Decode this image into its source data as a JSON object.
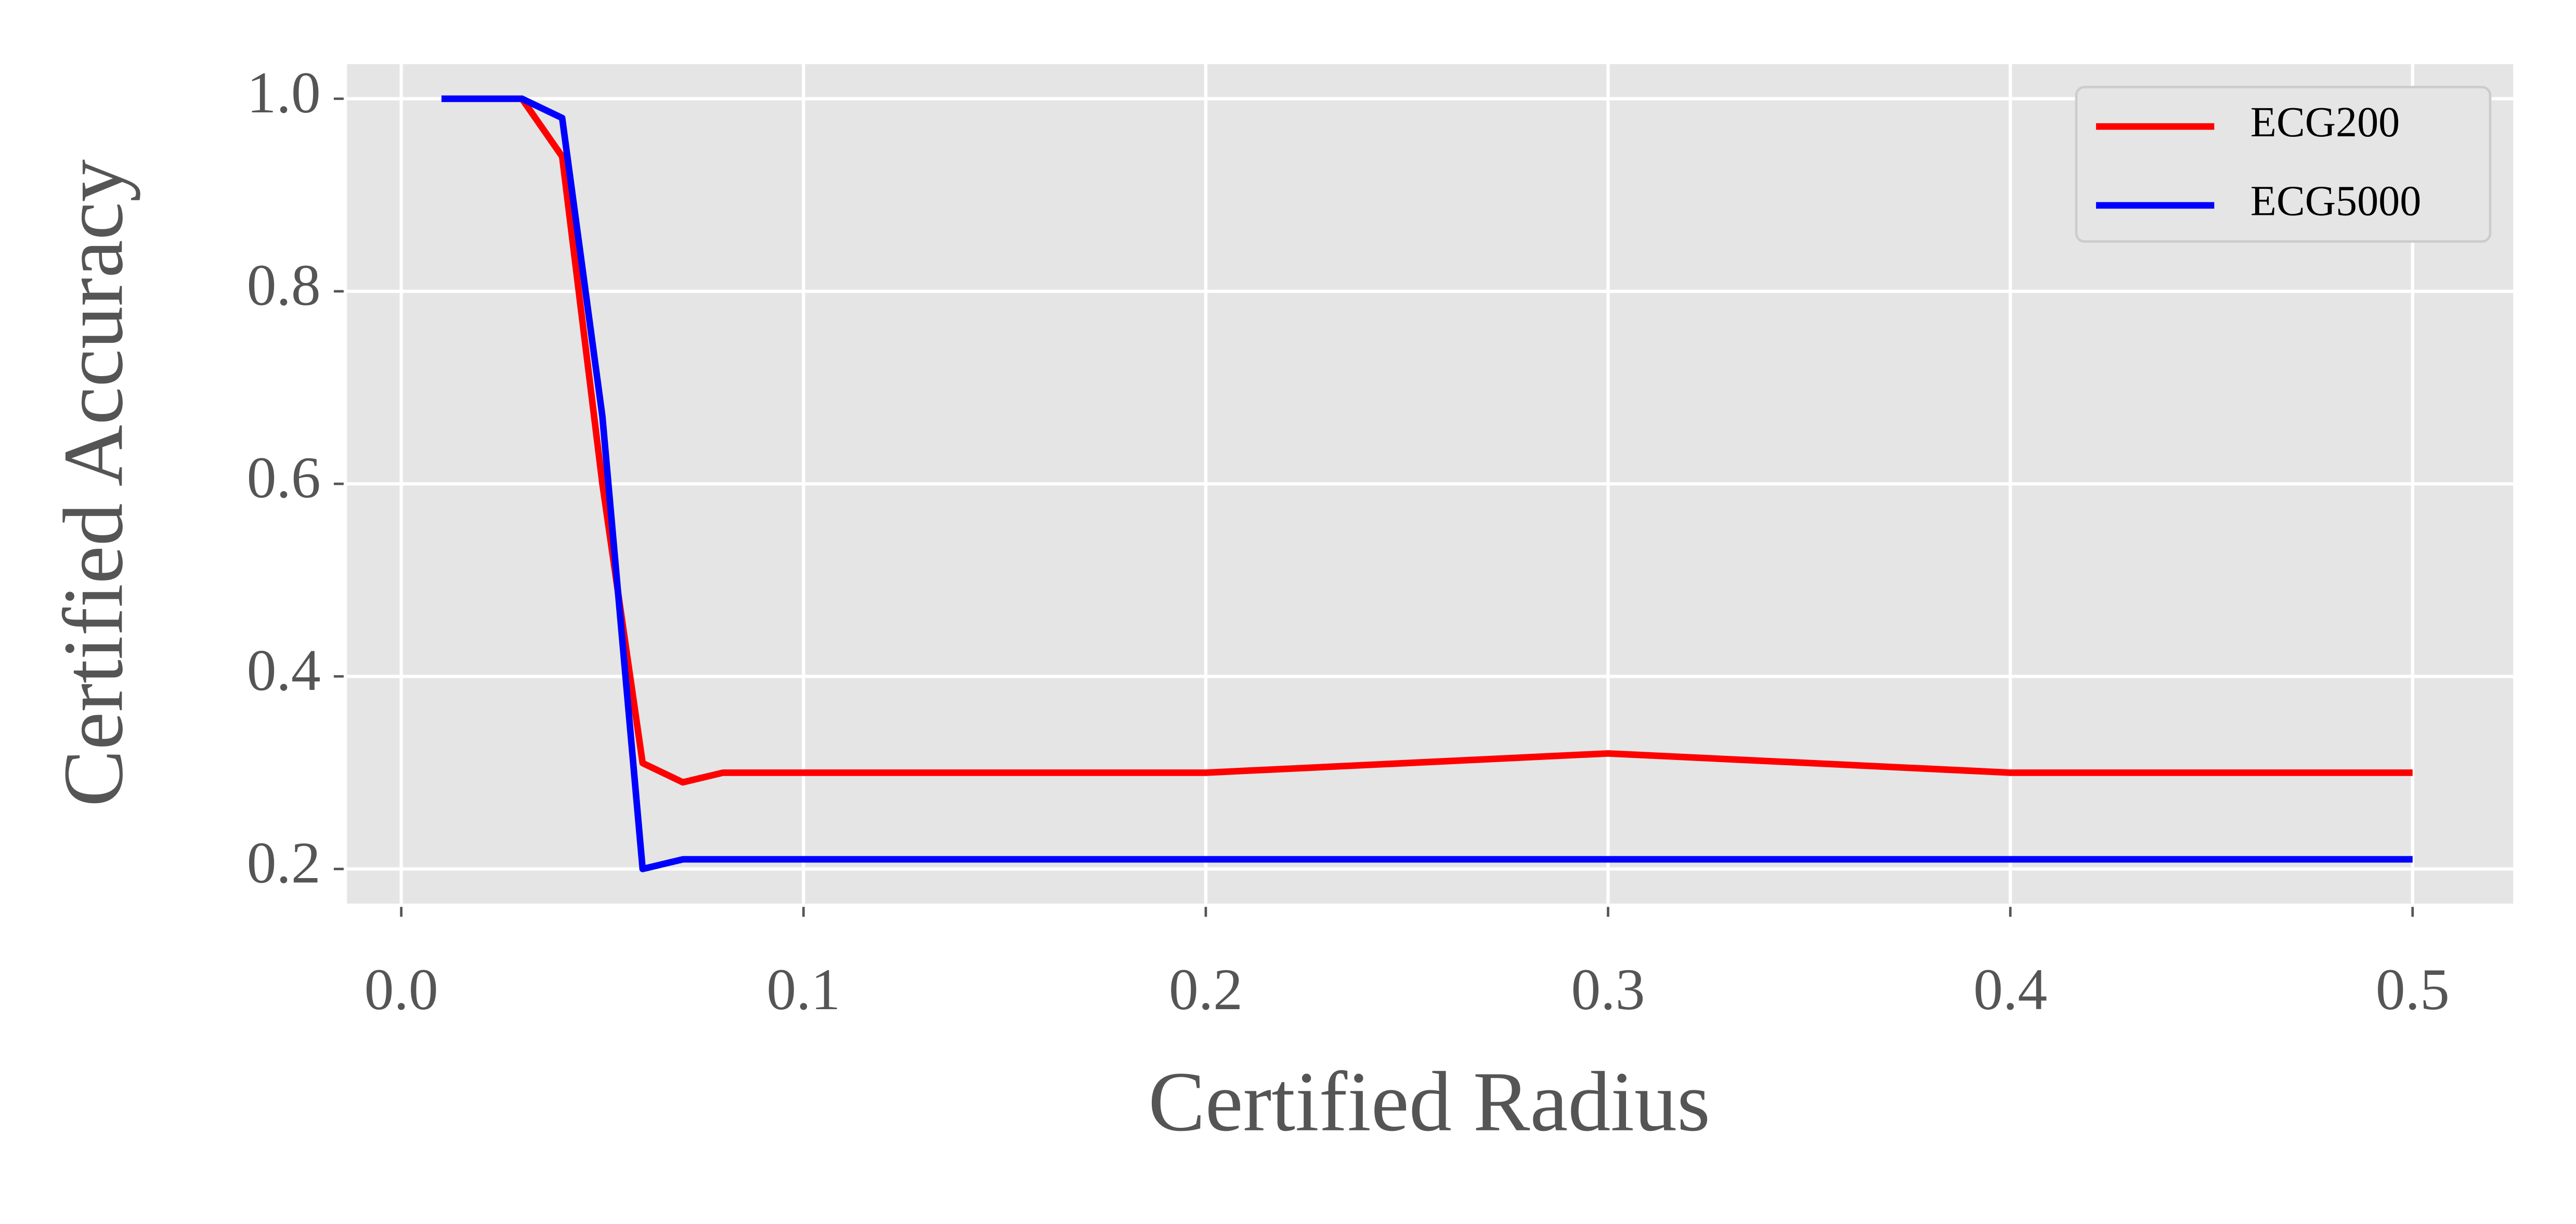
{
  "chart_data": {
    "type": "line",
    "x_label": "Certified Radius",
    "y_label": "Certified Accuracy",
    "x": [
      0.01,
      0.02,
      0.03,
      0.04,
      0.05,
      0.06,
      0.07,
      0.08,
      0.1,
      0.2,
      0.3,
      0.4,
      0.5
    ],
    "series": [
      {
        "name": "ECG200",
        "color": "#ff0000",
        "values": [
          1.0,
          1.0,
          1.0,
          0.94,
          0.6,
          0.31,
          0.29,
          0.3,
          0.3,
          0.3,
          0.32,
          0.3,
          0.3
        ]
      },
      {
        "name": "ECG5000",
        "color": "#0000ff",
        "values": [
          1.0,
          1.0,
          1.0,
          0.98,
          0.67,
          0.2,
          0.21,
          0.21,
          0.21,
          0.21,
          0.21,
          0.21,
          0.21
        ]
      }
    ],
    "xlim": [
      -0.0135,
      0.525
    ],
    "ylim": [
      0.164,
      1.036
    ],
    "xticks": [
      {
        "value": 0,
        "label": "0.0"
      },
      0.1,
      0.2,
      0.3,
      0.4,
      0.5
    ],
    "yticks": [
      0.2,
      0.4,
      0.6,
      0.8,
      {
        "value": 1,
        "label": "1.0"
      }
    ],
    "grid": true,
    "legend": "upper-right"
  }
}
